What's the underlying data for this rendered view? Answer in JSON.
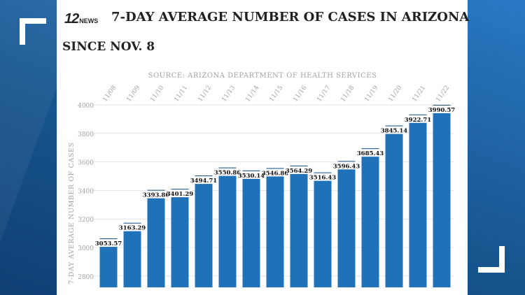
{
  "header": {
    "logo_number": "12",
    "logo_word": "NEWS",
    "title": "7-DAY AVERAGE NUMBER OF CASES IN ARIZONA",
    "subtitle": "SINCE NOV. 8"
  },
  "chart_data": {
    "type": "bar",
    "title": "7-DAY AVERAGE NUMBER OF CASES IN ARIZONA",
    "subtitle": "SOURCE: ARIZONA DEPARTMENT OF HEALTH SERVICES",
    "xlabel": "",
    "ylabel": "7-DAY AVERAGE NUMBER OF CASES",
    "categories": [
      "11/08",
      "11/09",
      "11/10",
      "11/11",
      "11/12",
      "11/13",
      "11/14",
      "11/15",
      "11/16",
      "11/17",
      "11/18",
      "11/19",
      "11/20",
      "11/21",
      "11/22"
    ],
    "values": [
      3053.57,
      3163.29,
      3393.86,
      3401.29,
      3494.71,
      3550.86,
      3530.14,
      3546.86,
      3564.29,
      3516.43,
      3596.43,
      3685.43,
      3845.14,
      3922.71,
      3990.57
    ],
    "value_labels": [
      "3053.57",
      "3163.29",
      "3393.86",
      "3401.29",
      "3494.71",
      "3550.86",
      "3530.14",
      "3546.86",
      "3564.29",
      "3516.43",
      "3596.43",
      "3685.43",
      "3845.14",
      "3922.71",
      "3990.57"
    ],
    "yticks": [
      2800,
      3000,
      3200,
      3400,
      3600,
      3800,
      4000
    ],
    "ylim": [
      2720,
      4000
    ],
    "grid": true,
    "bar_color": "#1f72b8",
    "cap_color": "#0d4a80",
    "grid_color": "#e4e4e4",
    "axis_text_color": "#a3a3a3"
  }
}
